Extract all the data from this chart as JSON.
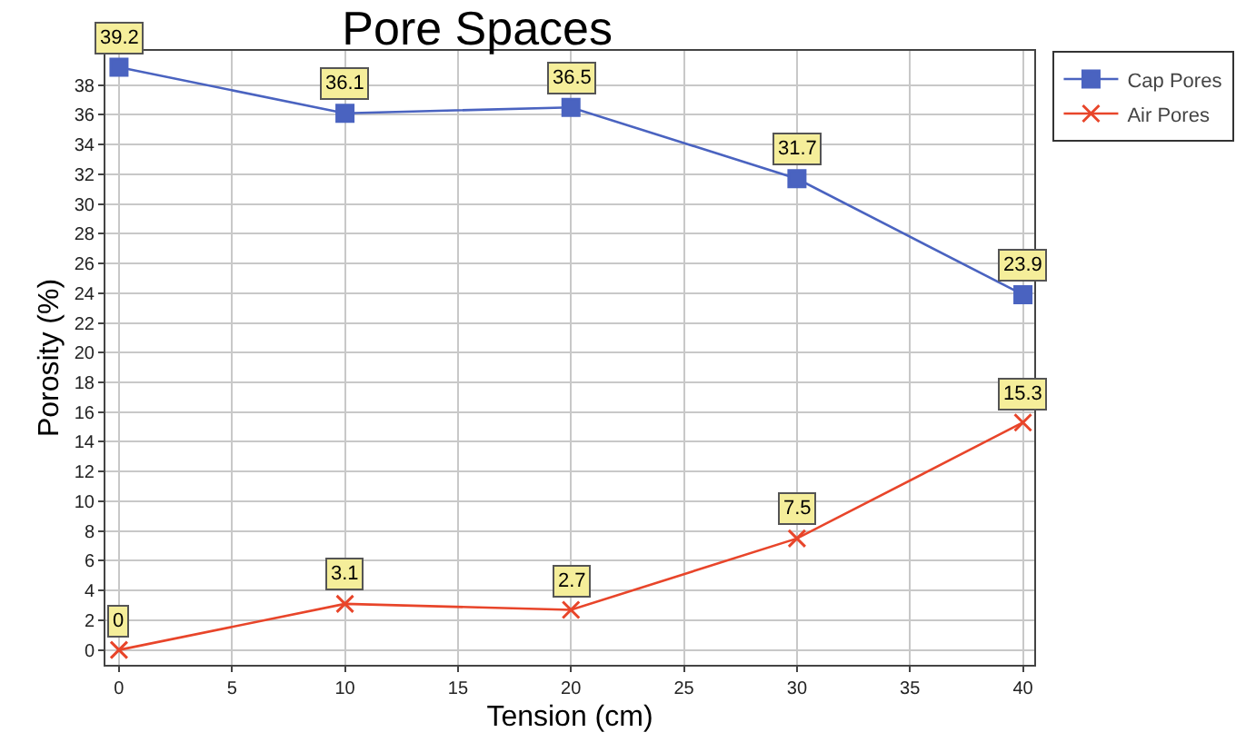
{
  "chart_data": {
    "type": "line",
    "title": "Pore Spaces",
    "xlabel": "Tension (cm)",
    "ylabel": "Porosity (%)",
    "x": [
      0,
      10,
      20,
      30,
      40
    ],
    "series": [
      {
        "name": "Cap Pores",
        "color": "#4a63c0",
        "marker": "square",
        "values": [
          39.2,
          36.1,
          36.5,
          31.7,
          23.9
        ]
      },
      {
        "name": "Air Pores",
        "color": "#e8452a",
        "marker": "cross",
        "values": [
          0,
          3.1,
          2.7,
          7.5,
          15.3
        ]
      }
    ],
    "xlim": [
      -0.6,
      40.5
    ],
    "xticks": [
      0,
      5,
      10,
      15,
      20,
      25,
      30,
      35,
      40
    ],
    "ylim": [
      -1,
      40.3
    ],
    "yticks": [
      0,
      2,
      4,
      6,
      8,
      10,
      12,
      14,
      16,
      18,
      20,
      22,
      24,
      26,
      28,
      30,
      32,
      34,
      36,
      38
    ],
    "grid": true,
    "legend": "top right",
    "data_labels": true
  }
}
